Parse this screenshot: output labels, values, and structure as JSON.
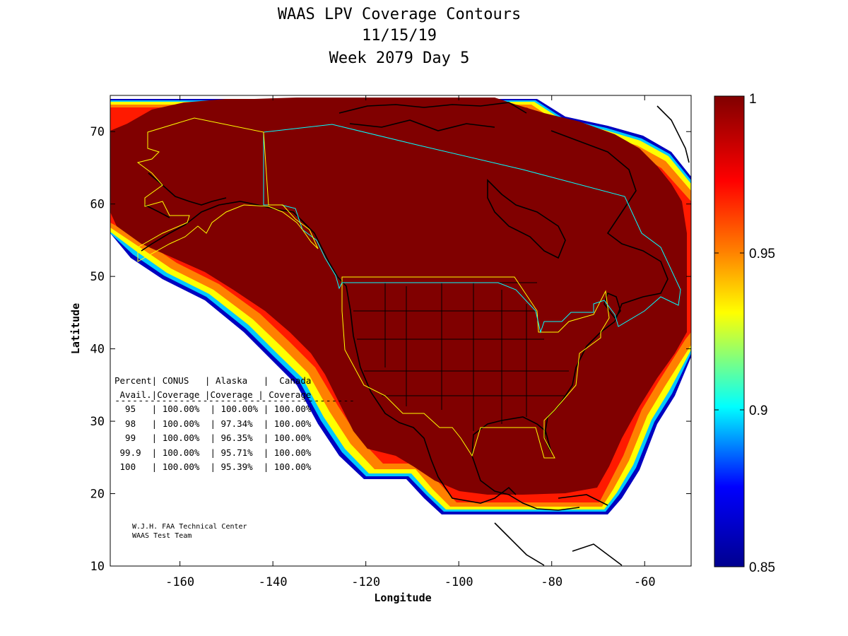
{
  "title": {
    "line1": "WAAS LPV Coverage Contours",
    "line2": "11/15/19",
    "line3": "Week 2079 Day 5"
  },
  "axes": {
    "xlabel": "Longitude",
    "ylabel": "Latitude",
    "xlim": [
      -175,
      -50
    ],
    "ylim": [
      10,
      75
    ],
    "xticks": [
      -160,
      -140,
      -120,
      -100,
      -80,
      -60
    ],
    "yticks": [
      10,
      20,
      30,
      40,
      50,
      60,
      70
    ]
  },
  "colorbar": {
    "min": 0.85,
    "max": 1,
    "ticks": [
      "1",
      "0.95",
      "0.9",
      "0.85"
    ],
    "colors": [
      "#800000",
      "#ff0000",
      "#ffff00",
      "#00ffff",
      "#0000ff",
      "#00008f"
    ]
  },
  "coverage_table": {
    "header1": "Percent| CONUS   | Alaska   |  Canada",
    "header2": " Avail.|Coverage |Coverage | Coverage",
    "divider": "-----------------------------------------",
    "rows": [
      "  95   | 100.00%  | 100.00% | 100.00%",
      "  98   | 100.00%  | 97.34%  | 100.00%",
      "  99   | 100.00%  | 96.35%  | 100.00%",
      " 99.9  | 100.00%  | 95.71%  | 100.00%",
      " 100   | 100.00%  | 95.39%  | 100.00%"
    ]
  },
  "credit": {
    "line1": "W.J.H. FAA Technical Center",
    "line2": "WAAS Test Team"
  },
  "colors": {
    "full_coverage": "#800000",
    "conus_boundary": "#ffff00",
    "canada_boundary": "#00ffff",
    "alaska_boundary": "#ffff00",
    "coastline": "#000000"
  }
}
